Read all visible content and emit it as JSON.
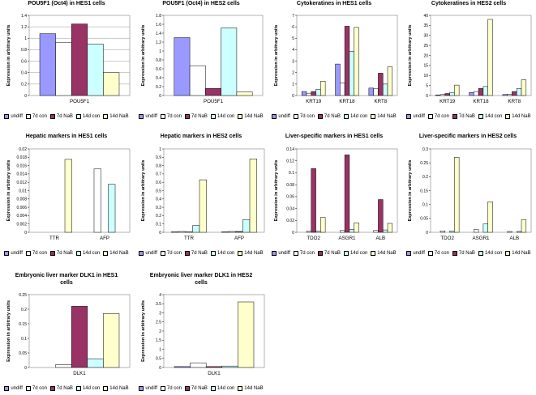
{
  "legend_labels": [
    "undiff",
    "7d con",
    "7d NaB",
    "14d con",
    "14d NaB"
  ],
  "series_colors": [
    "#9999ff",
    "#ffffff",
    "#993366",
    "#ccffff",
    "#ffffcc"
  ],
  "ylabel": "Expression in arbitrary units",
  "chart_data": [
    {
      "type": "bar",
      "title": "POU5F1 (Oct4) in HES1 cells",
      "categories": [
        "POU5F1"
      ],
      "ylim": [
        0,
        1.4
      ],
      "yticks": [
        "0",
        "0.2",
        "0.4",
        "0.6",
        "0.8",
        "1",
        "1.2",
        "1.4"
      ],
      "grid": true,
      "series": [
        {
          "name": "undiff",
          "values": [
            1.08
          ]
        },
        {
          "name": "7d con",
          "values": [
            0.93
          ]
        },
        {
          "name": "7d NaB",
          "values": [
            1.25
          ]
        },
        {
          "name": "14d con",
          "values": [
            0.9
          ]
        },
        {
          "name": "14d NaB",
          "values": [
            0.4
          ]
        }
      ]
    },
    {
      "type": "bar",
      "title": "POU5F1 (Oct4) in HES2 cells",
      "categories": [
        "POU5F1"
      ],
      "ylim": [
        0,
        1.8
      ],
      "yticks": [
        "0",
        "0.2",
        "0.4",
        "0.6",
        "0.8",
        "1",
        "1.2",
        "1.4",
        "1.6",
        "1.8"
      ],
      "grid": false,
      "series": [
        {
          "name": "undiff",
          "values": [
            1.3
          ]
        },
        {
          "name": "7d con",
          "values": [
            0.67
          ]
        },
        {
          "name": "7d NaB",
          "values": [
            0.16
          ]
        },
        {
          "name": "14d con",
          "values": [
            1.52
          ]
        },
        {
          "name": "14d NaB",
          "values": [
            0.08
          ]
        }
      ]
    },
    {
      "type": "bar",
      "title": "Cytokeratines in HES1 cells",
      "categories": [
        "KRT19",
        "KRT18",
        "KRT8"
      ],
      "ylim": [
        0,
        7
      ],
      "yticks": [
        "0",
        "1",
        "2",
        "3",
        "4",
        "5",
        "6",
        "7"
      ],
      "grid": false,
      "series": [
        {
          "name": "undiff",
          "values": [
            0.35,
            2.75,
            0.65
          ]
        },
        {
          "name": "7d con",
          "values": [
            0.2,
            1.1,
            0.6
          ]
        },
        {
          "name": "7d NaB",
          "values": [
            0.35,
            6.05,
            1.95
          ]
        },
        {
          "name": "14d con",
          "values": [
            0.55,
            3.85,
            1.0
          ]
        },
        {
          "name": "14d NaB",
          "values": [
            1.25,
            5.95,
            2.5
          ]
        }
      ]
    },
    {
      "type": "bar",
      "title": "Cytokeratines in HES2 cells",
      "categories": [
        "KRT19",
        "KRT18",
        "KRT8"
      ],
      "ylim": [
        0,
        40
      ],
      "yticks": [
        "0",
        "5",
        "10",
        "15",
        "20",
        "25",
        "30",
        "35",
        "40"
      ],
      "grid": false,
      "series": [
        {
          "name": "undiff",
          "values": [
            0.3,
            1.5,
            0.5
          ]
        },
        {
          "name": "7d con",
          "values": [
            0.5,
            2.0,
            0.7
          ]
        },
        {
          "name": "7d NaB",
          "values": [
            1.0,
            3.5,
            2.0
          ]
        },
        {
          "name": "14d con",
          "values": [
            1.5,
            4.5,
            3.5
          ]
        },
        {
          "name": "14d NaB",
          "values": [
            5.2,
            38.0,
            7.8
          ]
        }
      ]
    },
    {
      "type": "bar",
      "title": "Hepatic markers in HES1 cells",
      "categories": [
        "TTR",
        "AFP"
      ],
      "ylim": [
        0,
        0.02
      ],
      "yticks": [
        "0",
        "0.002",
        "0.004",
        "0.006",
        "0.008",
        "0.01",
        "0.012",
        "0.014",
        "0.016",
        "0.018",
        "0.02"
      ],
      "grid": false,
      "series": [
        {
          "name": "undiff",
          "values": [
            0,
            0
          ]
        },
        {
          "name": "7d con",
          "values": [
            0,
            0.0152
          ]
        },
        {
          "name": "7d NaB",
          "values": [
            0,
            0
          ]
        },
        {
          "name": "14d con",
          "values": [
            0,
            0.0115
          ]
        },
        {
          "name": "14d NaB",
          "values": [
            0.0175,
            0
          ]
        }
      ]
    },
    {
      "type": "bar",
      "title": "Hepatic markers in HES2 cells",
      "categories": [
        "TTR",
        "AFP"
      ],
      "ylim": [
        0,
        1
      ],
      "yticks": [
        "0",
        "0.1",
        "0.2",
        "0.3",
        "0.4",
        "0.5",
        "0.6",
        "0.7",
        "0.8",
        "0.9",
        "1"
      ],
      "grid": false,
      "series": [
        {
          "name": "undiff",
          "values": [
            0.005,
            0.005
          ]
        },
        {
          "name": "7d con",
          "values": [
            0.01,
            0.01
          ]
        },
        {
          "name": "7d NaB",
          "values": [
            0.005,
            0.01
          ]
        },
        {
          "name": "14d con",
          "values": [
            0.08,
            0.15
          ]
        },
        {
          "name": "14d NaB",
          "values": [
            0.63,
            0.88
          ]
        }
      ]
    },
    {
      "type": "bar",
      "title": "Liver-specific markers in HES1 cells",
      "categories": [
        "TDO2",
        "ASGR1",
        "ALB"
      ],
      "ylim": [
        0,
        0.14
      ],
      "yticks": [
        "0",
        "0.02",
        "0.04",
        "0.06",
        "0.08",
        "0.1",
        "0.12",
        "0.14"
      ],
      "grid": false,
      "series": [
        {
          "name": "undiff",
          "values": [
            0,
            0,
            0
          ]
        },
        {
          "name": "7d con",
          "values": [
            0.002,
            0.003,
            0.003
          ]
        },
        {
          "name": "7d NaB",
          "values": [
            0.107,
            0.13,
            0.055
          ]
        },
        {
          "name": "14d con",
          "values": [
            0.002,
            0.005,
            0.004
          ]
        },
        {
          "name": "14d NaB",
          "values": [
            0.025,
            0.016,
            0.015
          ]
        }
      ]
    },
    {
      "type": "bar",
      "title": "Liver-specific markers in HES2 cells",
      "categories": [
        "TDO2",
        "ASGR1",
        "ALB"
      ],
      "ylim": [
        0,
        0.3
      ],
      "yticks": [
        "0",
        "0.05",
        "0.1",
        "0.15",
        "0.2",
        "0.25",
        "0.3"
      ],
      "grid": false,
      "series": [
        {
          "name": "undiff",
          "values": [
            0,
            0,
            0
          ]
        },
        {
          "name": "7d con",
          "values": [
            0.005,
            0.01,
            0.003
          ]
        },
        {
          "name": "7d NaB",
          "values": [
            0,
            0,
            0
          ]
        },
        {
          "name": "14d con",
          "values": [
            0.005,
            0.03,
            0.003
          ]
        },
        {
          "name": "14d NaB",
          "values": [
            0.27,
            0.11,
            0.045
          ]
        }
      ]
    },
    {
      "type": "bar",
      "title": "Embryonic liver marker DLK1 in HES1 cells",
      "categories": [
        "DLK1"
      ],
      "ylim": [
        0,
        0.25
      ],
      "yticks": [
        "0",
        "0.05",
        "0.1",
        "0.15",
        "0.2",
        "0.25"
      ],
      "grid": false,
      "series": [
        {
          "name": "undiff",
          "values": [
            0
          ]
        },
        {
          "name": "7d con",
          "values": [
            0.01
          ]
        },
        {
          "name": "7d NaB",
          "values": [
            0.21
          ]
        },
        {
          "name": "14d con",
          "values": [
            0.03
          ]
        },
        {
          "name": "14d NaB",
          "values": [
            0.185
          ]
        }
      ]
    },
    {
      "type": "bar",
      "title": "Embryonic liver marker DLK1 in HES2 cells",
      "categories": [
        "DLK1"
      ],
      "ylim": [
        0,
        4
      ],
      "yticks": [
        "0",
        "0.5",
        "1",
        "1.5",
        "2",
        "2.5",
        "3",
        "3.5",
        "4"
      ],
      "grid": false,
      "series": [
        {
          "name": "undiff",
          "values": [
            0.05
          ]
        },
        {
          "name": "7d con",
          "values": [
            0.25
          ]
        },
        {
          "name": "7d NaB",
          "values": [
            0.05
          ]
        },
        {
          "name": "14d con",
          "values": [
            0.08
          ]
        },
        {
          "name": "14d NaB",
          "values": [
            3.6
          ]
        }
      ]
    }
  ]
}
